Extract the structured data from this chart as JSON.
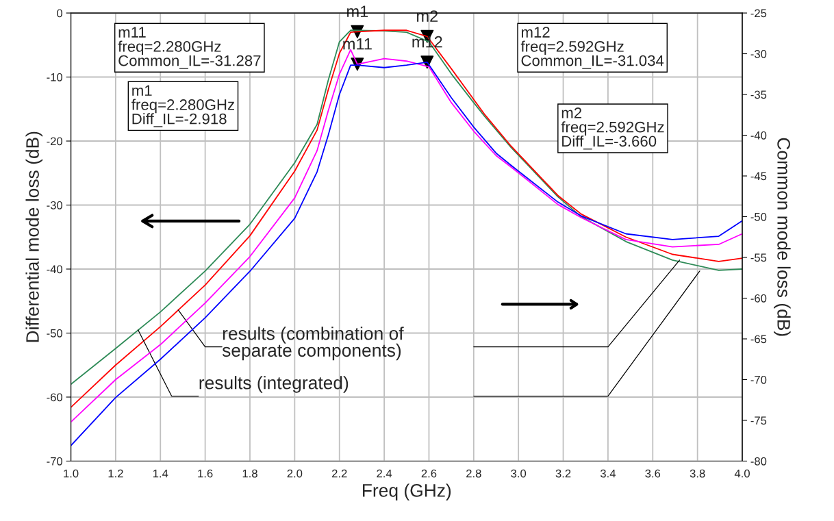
{
  "chart_data": {
    "type": "line",
    "xlabel": "Freq (GHz)",
    "ylabel": "Differential mode loss (dB)",
    "y2label": "Common mode loss (dB)",
    "xlim": [
      1.0,
      4.0
    ],
    "xticks": [
      {
        "value": 1,
        "label": "1.0"
      },
      1.2,
      1.4,
      1.6,
      1.8,
      {
        "value": 2,
        "label": "2.0"
      },
      2.2,
      2.4,
      2.6,
      2.8,
      {
        "value": 3,
        "label": "3.0"
      },
      3.2,
      3.4,
      3.6,
      3.8,
      {
        "value": 4,
        "label": "4.0"
      }
    ],
    "ylim": [
      -70,
      0
    ],
    "yticks": [
      -70,
      -60,
      -50,
      -40,
      -30,
      -20,
      -10,
      0
    ],
    "y2lim": [
      -80,
      -25
    ],
    "y2ticks": [
      -80,
      -75,
      -70,
      -65,
      -60,
      -55,
      -50,
      -45,
      -40,
      -35,
      -30,
      -25
    ],
    "grid": true,
    "line_style": "solid",
    "marker": "none",
    "series": [
      {
        "color": "#2e8b57",
        "x": [
          1.0,
          1.2,
          1.4,
          1.6,
          1.8,
          2.0,
          2.1,
          2.15,
          2.2,
          2.25,
          2.4,
          2.5,
          2.6,
          2.7,
          2.8,
          2.85,
          2.967,
          3.176,
          3.28,
          3.48,
          3.688,
          3.895,
          4.0
        ],
        "values": [
          -58,
          -52.4,
          -46.7,
          -40.3,
          -33,
          -23.4,
          -17.4,
          -10.5,
          -4.5,
          -2.7,
          -2.8,
          -3.0,
          -4.5,
          -9.5,
          -14,
          -16.2,
          -21,
          -28.7,
          -31.8,
          -35.7,
          -38.6,
          -40.2,
          -40
        ]
      },
      {
        "color": "#ff0000",
        "x": [
          1.0,
          1.2,
          1.4,
          1.6,
          1.8,
          2.0,
          2.1,
          2.15,
          2.2,
          2.25,
          2.28,
          2.4,
          2.5,
          2.592,
          2.7,
          2.8,
          2.85,
          2.967,
          3.176,
          3.28,
          3.48,
          3.688,
          3.895,
          4.0
        ],
        "values": [
          -61.6,
          -55,
          -49,
          -42.5,
          -34.8,
          -24.7,
          -18.3,
          -12,
          -6.3,
          -3,
          -2.918,
          -2.7,
          -2.7,
          -3.66,
          -8.7,
          -13.5,
          -15.9,
          -20.8,
          -28.5,
          -31.4,
          -35,
          -37.7,
          -38.8,
          -38.3
        ]
      },
      {
        "color": "#ff00ff",
        "axis": "y2",
        "x": [
          1.0,
          1.2,
          1.4,
          1.6,
          1.8,
          2.0,
          2.1,
          2.15,
          2.2,
          2.25,
          2.28,
          2.4,
          2.5,
          2.6,
          2.7,
          2.8,
          2.9,
          2.967,
          3.176,
          3.28,
          3.48,
          3.688,
          3.895,
          4.0
        ],
        "values": [
          -75.2,
          -70,
          -65.7,
          -60.6,
          -54.9,
          -47.7,
          -41.9,
          -37,
          -32.5,
          -29.5,
          -31.287,
          -30.6,
          -30.9,
          -31.6,
          -36,
          -39.5,
          -42.5,
          -43.9,
          -48.5,
          -50.1,
          -52.8,
          -53.7,
          -53.4,
          -52.1
        ]
      },
      {
        "color": "#0000ff",
        "axis": "y2",
        "x": [
          1.0,
          1.2,
          1.4,
          1.6,
          1.8,
          2.0,
          2.1,
          2.15,
          2.2,
          2.25,
          2.28,
          2.4,
          2.5,
          2.592,
          2.7,
          2.8,
          2.9,
          2.967,
          3.176,
          3.28,
          3.48,
          3.688,
          3.895,
          4.0
        ],
        "values": [
          -78.1,
          -72.2,
          -67.5,
          -62.4,
          -56.7,
          -50.2,
          -44.5,
          -40,
          -35,
          -31.4,
          -31.4,
          -31.7,
          -31.4,
          -31.034,
          -35.4,
          -39,
          -42.2,
          -43.7,
          -48.2,
          -49.9,
          -52.1,
          -52.8,
          -52.4,
          -50.5
        ]
      },
      {
        "type": "scatter",
        "marker": "triangle",
        "color": "#000000",
        "x": [
          2.28,
          2.592
        ],
        "values": [
          -2.918,
          -3.66
        ],
        "value_labels": [
          "m1",
          "m2"
        ]
      },
      {
        "type": "scatter",
        "marker": "triangle",
        "color": "#000000",
        "axis": "y2",
        "x": [
          2.28,
          2.592
        ],
        "values": [
          -31.287,
          -31.034
        ],
        "value_labels": [
          "m11",
          "m12"
        ]
      }
    ],
    "annotations": [
      "m11\nfreq=2.280GHz\nCommon_IL=-31.287",
      "m12\nfreq=2.592GHz\nCommon_IL=-31.034",
      "m1\nfreq=2.280GHz\nDiff_IL=-2.918",
      "m2\nfreq=2.592GHz\nDiff_IL=-3.660",
      {
        "text": "results (combination of\nseparate components)",
        "x": 1.48,
        "y": -46.4
      },
      {
        "text": "results (integrated)",
        "x": 1.3,
        "y": -49.5
      }
    ]
  }
}
